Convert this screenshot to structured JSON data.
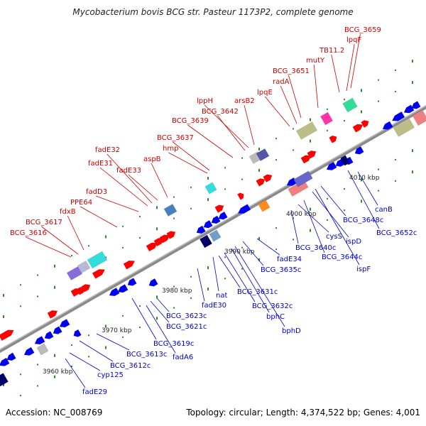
{
  "title": "Mycobacterium bovis BCG str. Pasteur 1173P2, complete genome",
  "footer": {
    "accession": "Accession: NC_008769",
    "summary": "Topology: circular; Length: 4,374,522 bp; Genes: 4,001"
  },
  "colors": {
    "background": "#ffffff",
    "backbone": "#888888",
    "forward_label": "#cc0000",
    "reverse_label": "#0000cc",
    "forward_gene": "#ff0000",
    "reverse_gene": "#0000ee",
    "tick_green": "#2a8a2a",
    "scale_text": "#222222"
  },
  "scale_labels": [
    "3960 kbp",
    "3970 kbp",
    "3980 kbp",
    "3990 kbp",
    "4000 kbp",
    "4010 kbp"
  ],
  "forward_labels": [
    "BCG_3616",
    "BCG_3617",
    "fdxB",
    "PPE64",
    "fadD3",
    "fadE31",
    "fadE32",
    "fadE33",
    "aspB",
    "hmp",
    "BCG_3637",
    "BCG_3639",
    "BCG_3642",
    "lppH",
    "arsB2",
    "lpqE",
    "radA",
    "BCG_3651",
    "mutY",
    "TB11.2",
    "lpqF",
    "BCG_3659"
  ],
  "reverse_labels": [
    "fadE29",
    "cyp125",
    "BCG_3612c",
    "BCG_3613c",
    "BCG_3619c",
    "fadA6",
    "BCG_3621c",
    "BCG_3623c",
    "fadE30",
    "nat",
    "BCG_3631c",
    "BCG_3632c",
    "bphC",
    "bphD",
    "BCG_3635c",
    "fadE34",
    "BCG_3640c",
    "cysS",
    "BCG_3644c",
    "ispD",
    "ispF",
    "BCG_3648c",
    "BCG_3652c",
    "canB"
  ]
}
